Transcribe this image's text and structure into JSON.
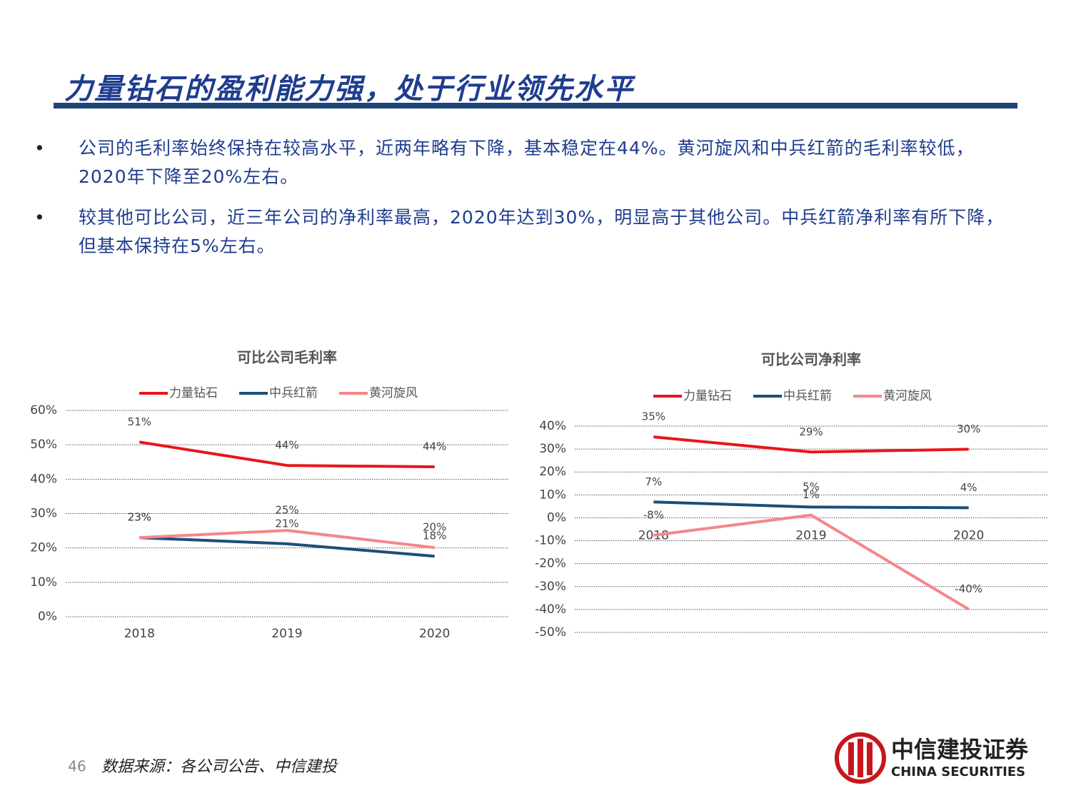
{
  "header": {
    "title": "力量钻石的盈利能力强，处于行业领先水平"
  },
  "bullets": [
    "公司的毛利率始终保持在较高水平，近两年略有下降，基本稳定在44%。黄河旋风和中兵红箭的毛利率较低，2020年下降至20%左右。",
    "较其他可比公司，近三年公司的净利率最高，2020年达到30%，明显高于其他公司。中兵红箭净利率有所下降，但基本保持在5%左右。"
  ],
  "footer": {
    "page": "46",
    "source": "数据来源：各公司公告、中信建投",
    "logo_cn": "中信建投证券",
    "logo_en": "CHINA SECURITIES"
  },
  "chart_data": [
    {
      "type": "line",
      "title": "可比公司毛利率",
      "categories": [
        "2018",
        "2019",
        "2020"
      ],
      "ylim": [
        0,
        60
      ],
      "yticks": [
        {
          "value": 0,
          "label": "0%"
        },
        {
          "value": 10,
          "label": "10%"
        },
        {
          "value": 20,
          "label": "20%"
        },
        {
          "value": 30,
          "label": "30%"
        },
        {
          "value": 40,
          "label": "40%"
        },
        {
          "value": 50,
          "label": "50%"
        },
        {
          "value": 60,
          "label": "60%"
        }
      ],
      "grid": true,
      "series": [
        {
          "name": "力量钻石",
          "color": "#e8161b",
          "values": [
            50.8,
            44.0,
            43.6
          ],
          "value_labels": [
            "51%",
            "44%",
            "44%"
          ]
        },
        {
          "name": "中兵红箭",
          "color": "#1a4f7a",
          "values": [
            23.0,
            21.2,
            17.6
          ],
          "value_labels": [
            "23%",
            "21%",
            "18%"
          ]
        },
        {
          "name": "黄河旋风",
          "color": "#f4868a",
          "values": [
            23.0,
            25.1,
            20.1
          ],
          "value_labels": [
            "23%",
            "25%",
            "20%"
          ]
        }
      ]
    },
    {
      "type": "line",
      "title": "可比公司净利率",
      "categories": [
        "2018",
        "2019",
        "2020"
      ],
      "ylim": [
        -50,
        40
      ],
      "yticks": [
        {
          "value": -50,
          "label": "-50%"
        },
        {
          "value": -40,
          "label": "-40%"
        },
        {
          "value": -30,
          "label": "-30%"
        },
        {
          "value": -20,
          "label": "-20%"
        },
        {
          "value": -10,
          "label": "-10%"
        },
        {
          "value": 0,
          "label": "0%"
        },
        {
          "value": 10,
          "label": "10%"
        },
        {
          "value": 20,
          "label": "20%"
        },
        {
          "value": 30,
          "label": "30%"
        },
        {
          "value": 40,
          "label": "40%"
        }
      ],
      "grid": true,
      "series": [
        {
          "name": "力量钻石",
          "color": "#e8161b",
          "values": [
            35.3,
            28.7,
            29.9
          ],
          "value_labels": [
            "35%",
            "29%",
            "30%"
          ]
        },
        {
          "name": "中兵红箭",
          "color": "#1a4f7a",
          "values": [
            6.9,
            4.7,
            4.4
          ],
          "value_labels": [
            "7%",
            "5%",
            "4%"
          ]
        },
        {
          "name": "黄河旋风",
          "color": "#f4868a",
          "values": [
            -7.6,
            1.2,
            -39.9
          ],
          "value_labels": [
            "-8%",
            "1%",
            "-40%"
          ]
        }
      ]
    }
  ]
}
